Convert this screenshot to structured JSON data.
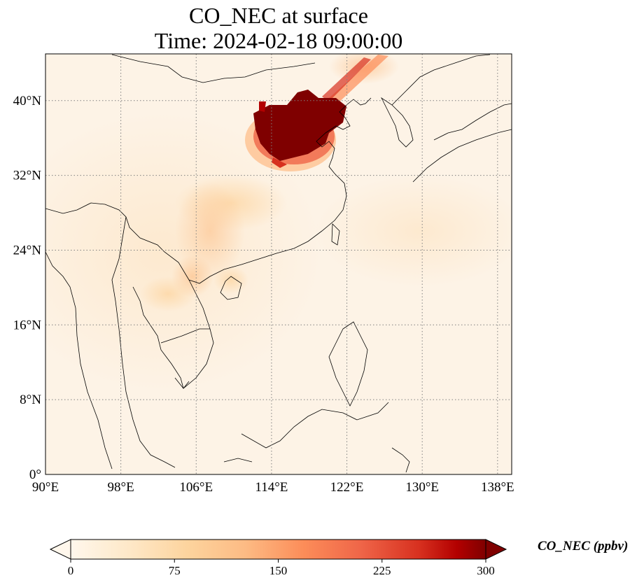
{
  "title": {
    "line1": "CO_NEC at surface",
    "line2": "Time: 2024-02-18 09:00:00"
  },
  "map": {
    "lon_range": [
      90,
      139.5
    ],
    "lat_range": [
      0,
      45
    ],
    "lon_ticks": [
      {
        "value": 90,
        "label": "90°E"
      },
      {
        "value": 98,
        "label": "98°E"
      },
      {
        "value": 106,
        "label": "106°E"
      },
      {
        "value": 114,
        "label": "114°E"
      },
      {
        "value": 122,
        "label": "122°E"
      },
      {
        "value": 130,
        "label": "130°E"
      },
      {
        "value": 138,
        "label": "138°E"
      }
    ],
    "lat_ticks": [
      {
        "value": 0,
        "label": "0°"
      },
      {
        "value": 8,
        "label": "8°N"
      },
      {
        "value": 16,
        "label": "16°N"
      },
      {
        "value": 24,
        "label": "24°N"
      },
      {
        "value": 32,
        "label": "32°N"
      },
      {
        "value": 40,
        "label": "40°N"
      }
    ],
    "gridlines": true,
    "gridline_style": "dotted",
    "colormap": "OrRd",
    "plume_max_region": "North China Plain",
    "colors": {
      "background_field": "#fdf3e6",
      "low": "#fff7ec",
      "mid": "#fdbb84",
      "high": "#d7301f",
      "max": "#7f0000",
      "coastline": "#000000",
      "grid": "#808080"
    }
  },
  "colorbar": {
    "label": "CO_NEC (ppbv)",
    "min": 0,
    "max": 300,
    "extend": "both",
    "ticks": [
      {
        "value": 0,
        "label": "0"
      },
      {
        "value": 75,
        "label": "75"
      },
      {
        "value": 150,
        "label": "150"
      },
      {
        "value": 225,
        "label": "225"
      },
      {
        "value": 300,
        "label": "300"
      }
    ]
  }
}
